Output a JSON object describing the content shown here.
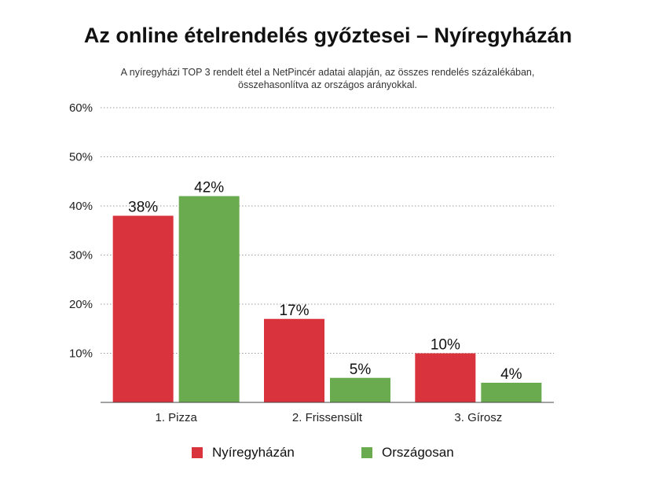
{
  "chart_data": {
    "type": "bar",
    "title": "Az online ételrendelés győztesei – Nyíregyházán",
    "subtitle_lines": [
      "A nyíregyházi TOP 3 rendelt étel a NetPincér adatai alapján, az összes rendelés százalékában,",
      "összehasonlítva az országos arányokkal."
    ],
    "categories": [
      "1. Pizza",
      "2. Frissensült",
      "3. Gírosz"
    ],
    "series": [
      {
        "name": "Nyíregyházán",
        "color": "#d9343e",
        "values": [
          38,
          17,
          10
        ],
        "labels": [
          "38%",
          "17%",
          "10%"
        ]
      },
      {
        "name": "Országosan",
        "color": "#6aab50",
        "values": [
          42,
          5,
          4
        ],
        "labels": [
          "42%",
          "5%",
          "4%"
        ]
      }
    ],
    "ylim": [
      0,
      60
    ],
    "yticks": [
      10,
      20,
      30,
      40,
      50,
      60
    ],
    "ytick_labels": [
      "10%",
      "20%",
      "30%",
      "40%",
      "50%",
      "60%"
    ],
    "grid": true,
    "legend_position": "bottom"
  }
}
